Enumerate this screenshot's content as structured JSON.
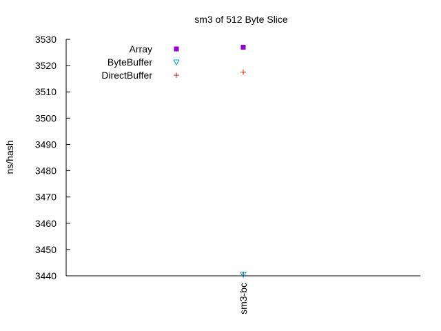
{
  "chart_data": {
    "type": "scatter",
    "title": "sm3 of 512 Byte Slice",
    "xlabel": "",
    "ylabel": "ns/hash",
    "categories": [
      "sm3-bc"
    ],
    "ylim": [
      3440,
      3530
    ],
    "yticks": [
      3440,
      3450,
      3460,
      3470,
      3480,
      3490,
      3500,
      3510,
      3520,
      3530
    ],
    "legend_position": "top-left",
    "grid": false,
    "series": [
      {
        "name": "Array",
        "marker": "square",
        "color": "#9400d3",
        "values": [
          3527
        ]
      },
      {
        "name": "ByteBuffer",
        "marker": "triangle-down",
        "color": "#009ee0",
        "values": [
          3440.5
        ]
      },
      {
        "name": "DirectBuffer",
        "marker": "plus",
        "color": "#e51e10",
        "values": [
          3517.5
        ]
      }
    ]
  }
}
